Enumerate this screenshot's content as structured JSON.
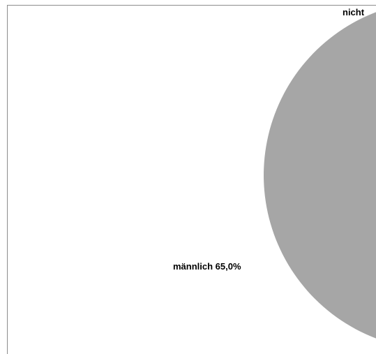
{
  "chart_data": {
    "type": "pie",
    "categories": [
      "männlich",
      "nicht"
    ],
    "values": [
      65.0,
      35.0
    ],
    "value_unit": "%",
    "labels": [
      {
        "category": "männlich",
        "text": "männlich 65,0%"
      },
      {
        "category": "nicht",
        "text": "nicht"
      }
    ],
    "colors": {
      "männlich": "#a6a6a6",
      "nicht": "#a6a6a6",
      "frame": "#8c8c8c"
    },
    "legend": "none"
  }
}
